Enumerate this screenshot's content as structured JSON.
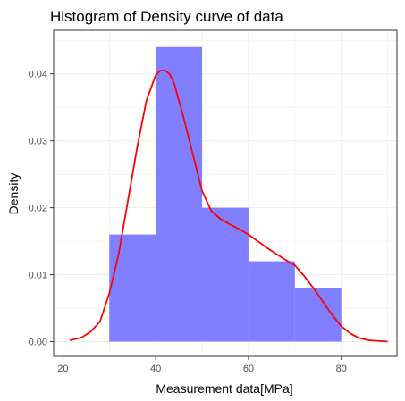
{
  "chart_data": {
    "type": "bar",
    "title": "Histogram of Density curve of data",
    "xlabel": "Measurement data[MPa]",
    "ylabel": "Density",
    "xlim": [
      18,
      92
    ],
    "ylim": [
      -0.0022,
      0.0465
    ],
    "x_ticks": [
      20,
      40,
      60,
      80
    ],
    "y_ticks": [
      0.0,
      0.01,
      0.02,
      0.03,
      0.04
    ],
    "y_tick_labels": [
      "0.00",
      "0.01",
      "0.02",
      "0.03",
      "0.04"
    ],
    "x_tick_labels": [
      "20",
      "40",
      "60",
      "80"
    ],
    "grid": true,
    "bins": [
      {
        "x0": 30,
        "x1": 40,
        "density": 0.016
      },
      {
        "x0": 40,
        "x1": 50,
        "density": 0.044
      },
      {
        "x0": 50,
        "x1": 60,
        "density": 0.02
      },
      {
        "x0": 60,
        "x1": 70,
        "density": 0.012
      },
      {
        "x0": 70,
        "x1": 80,
        "density": 0.008
      }
    ],
    "density_curve": {
      "x": [
        21.5,
        24,
        26,
        28,
        30,
        32,
        34,
        36,
        38,
        40,
        41,
        42,
        43,
        44,
        45,
        46,
        48,
        50,
        52,
        54,
        56,
        58,
        60,
        62,
        64,
        66,
        68,
        70,
        72,
        74,
        76,
        78,
        80,
        82,
        84,
        86,
        88,
        90
      ],
      "y": [
        0.0002,
        0.0006,
        0.0015,
        0.003,
        0.0072,
        0.013,
        0.021,
        0.029,
        0.036,
        0.0398,
        0.0405,
        0.0405,
        0.04,
        0.0385,
        0.036,
        0.0335,
        0.028,
        0.0225,
        0.0195,
        0.0183,
        0.0175,
        0.0168,
        0.016,
        0.015,
        0.014,
        0.0131,
        0.0122,
        0.0114,
        0.0098,
        0.008,
        0.006,
        0.004,
        0.0023,
        0.0012,
        0.0005,
        0.0002,
        0.0001,
        2e-05
      ]
    },
    "colors": {
      "bar_fill": "#7f7fff",
      "curve": "#ff0000",
      "grid": "#ebebeb",
      "panel_border": "#333333"
    }
  }
}
